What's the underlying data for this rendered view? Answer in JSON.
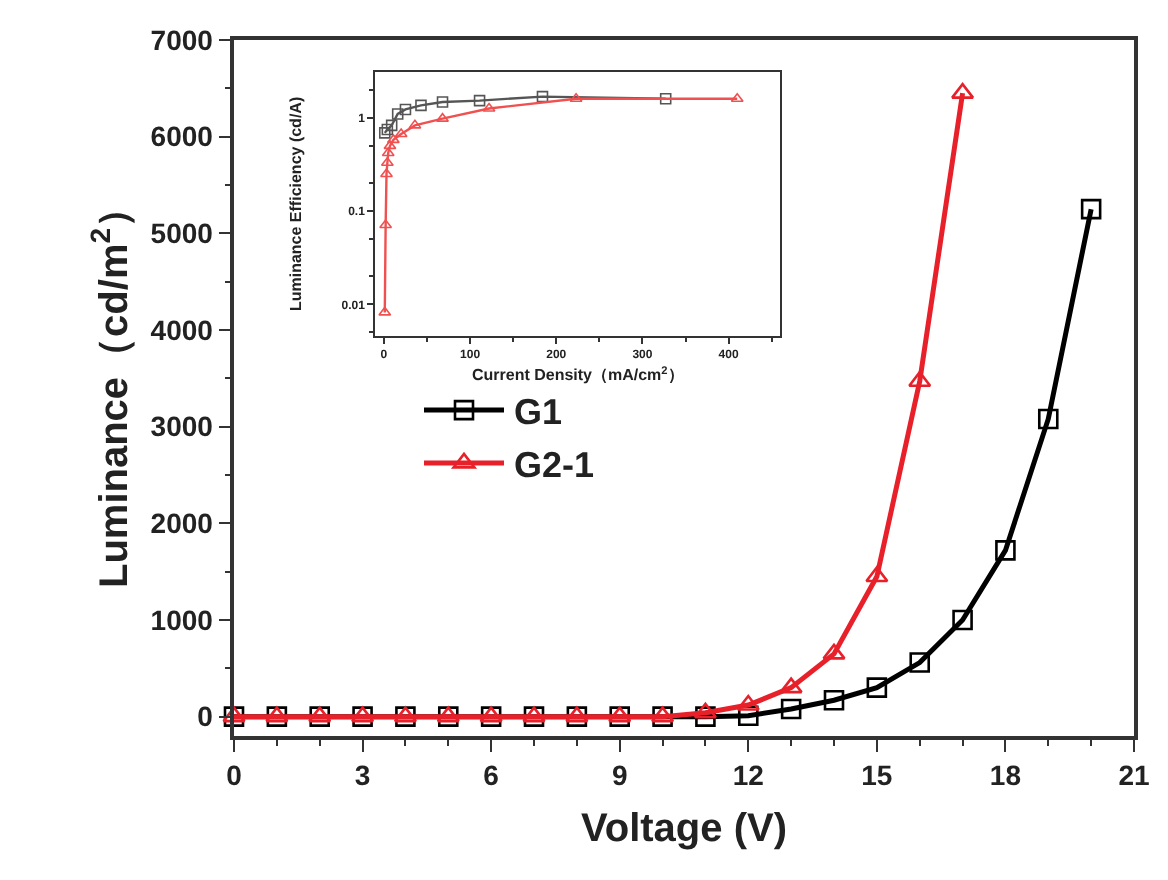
{
  "chart_data": [
    {
      "type": "line",
      "xlabel": "Voltage (V)",
      "ylabel": "Luminance（cd/m$^{2}$）",
      "x": [
        0,
        1,
        2,
        3,
        4,
        5,
        6,
        7,
        8,
        9,
        10,
        11,
        12,
        13,
        14,
        15,
        16,
        17,
        18,
        19,
        20
      ],
      "xlim": [
        0,
        21
      ],
      "xticks": [
        0,
        3,
        6,
        9,
        12,
        15,
        18,
        21
      ],
      "ylim": [
        -200,
        7000
      ],
      "yticks": [
        0,
        1000,
        2000,
        3000,
        4000,
        5000,
        6000,
        7000
      ],
      "legend": "left",
      "series": [
        {
          "name": "G1",
          "color": "#000000",
          "marker": "square",
          "values": [
            0,
            0,
            0,
            0,
            0,
            0,
            0,
            0,
            0,
            0,
            0,
            0,
            10,
            80,
            170,
            300,
            560,
            1000,
            1720,
            3080,
            5250
          ]
        },
        {
          "name": "G2-1",
          "color": "#e8202a",
          "marker": "triangle",
          "values": [
            0,
            0,
            0,
            0,
            0,
            0,
            0,
            0,
            0,
            0,
            0,
            40,
            120,
            300,
            650,
            1450,
            3470,
            6450,
            null,
            null,
            null
          ]
        }
      ]
    },
    {
      "type": "line",
      "xlabel": "Current Density（mA/cm$^{2}$）",
      "ylabel": "Luminance Efficiency (cd/A)",
      "log": "y",
      "xlim": [
        -10,
        460
      ],
      "xticks": [
        0,
        100,
        200,
        300,
        400
      ],
      "ylim": [
        0.0046,
        3.1
      ],
      "yticks": [
        0.01,
        0.1,
        1
      ],
      "series": [
        {
          "color": "#555555",
          "marker": "square",
          "x": [
            1,
            4,
            9,
            16,
            25,
            43,
            68,
            111,
            184,
            327
          ],
          "values": [
            0.69,
            0.75,
            0.83,
            1.1,
            1.23,
            1.36,
            1.48,
            1.53,
            1.69,
            1.6
          ]
        },
        {
          "color": "#f05050",
          "marker": "triangle",
          "x": [
            1,
            2,
            3,
            4,
            5,
            7,
            11,
            20,
            36,
            68,
            122,
            223,
            410
          ],
          "values": [
            0.0082,
            0.071,
            0.25,
            0.33,
            0.42,
            0.5,
            0.58,
            0.67,
            0.83,
            0.98,
            1.26,
            1.6,
            1.6
          ]
        }
      ]
    }
  ]
}
